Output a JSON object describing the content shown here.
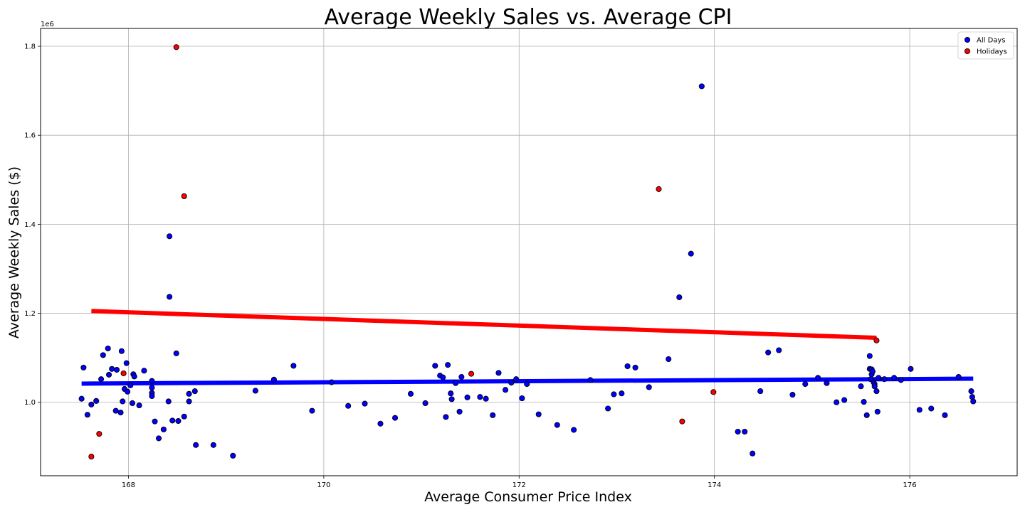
{
  "chart_data": {
    "type": "scatter",
    "title": "Average Weekly Sales vs. Average CPI",
    "xlabel": "Average Consumer Price Index",
    "ylabel": "Average Weekly Sales ($)",
    "y_scale_factor_label": "1e6",
    "xlim": [
      167.1,
      177.1
    ],
    "ylim": [
      0.835,
      1.84
    ],
    "x_ticks": [
      168,
      170,
      172,
      174,
      176
    ],
    "y_ticks": [
      1.0,
      1.2,
      1.4,
      1.6,
      1.8
    ],
    "x_tick_labels": [
      "168",
      "170",
      "172",
      "174",
      "176"
    ],
    "y_tick_labels": [
      "1.0",
      "1.2",
      "1.4",
      "1.6",
      "1.8"
    ],
    "grid": true,
    "legend_position": "top-right",
    "colors": {
      "all_days": "#0000ff",
      "holidays": "#ff0000",
      "grid": "#b0b0b0"
    },
    "series": [
      {
        "name": "All Days",
        "color": "#0000ff",
        "points": [
          [
            167.52,
            1.008
          ],
          [
            167.54,
            1.078
          ],
          [
            167.58,
            0.972
          ],
          [
            167.62,
            0.995
          ],
          [
            167.67,
            1.003
          ],
          [
            167.72,
            1.052
          ],
          [
            167.74,
            1.106
          ],
          [
            167.79,
            1.121
          ],
          [
            167.8,
            1.062
          ],
          [
            167.83,
            1.075
          ],
          [
            167.87,
            0.981
          ],
          [
            167.88,
            1.073
          ],
          [
            167.92,
            0.977
          ],
          [
            167.93,
            1.115
          ],
          [
            167.94,
            1.002
          ],
          [
            167.96,
            1.03
          ],
          [
            167.98,
            1.088
          ],
          [
            167.99,
            1.024
          ],
          [
            168.02,
            1.038
          ],
          [
            168.04,
            0.998
          ],
          [
            168.05,
            1.063
          ],
          [
            168.06,
            1.058
          ],
          [
            168.11,
            0.993
          ],
          [
            168.16,
            1.071
          ],
          [
            168.24,
            1.048
          ],
          [
            168.24,
            1.033
          ],
          [
            168.24,
            1.021
          ],
          [
            168.24,
            1.014
          ],
          [
            168.27,
            0.957
          ],
          [
            168.31,
            0.919
          ],
          [
            168.36,
            0.939
          ],
          [
            168.41,
            1.002
          ],
          [
            168.42,
            1.373
          ],
          [
            168.42,
            1.237
          ],
          [
            168.45,
            0.959
          ],
          [
            168.49,
            1.11
          ],
          [
            168.51,
            0.958
          ],
          [
            168.57,
            0.968
          ],
          [
            168.62,
            1.019
          ],
          [
            168.62,
            1.002
          ],
          [
            168.68,
            1.025
          ],
          [
            168.69,
            0.904
          ],
          [
            168.87,
            0.904
          ],
          [
            169.07,
            0.88
          ],
          [
            169.3,
            1.026
          ],
          [
            169.49,
            1.051
          ],
          [
            169.69,
            1.082
          ],
          [
            169.88,
            0.981
          ],
          [
            170.08,
            1.045
          ],
          [
            170.25,
            0.992
          ],
          [
            170.42,
            0.997
          ],
          [
            170.58,
            0.952
          ],
          [
            170.73,
            0.965
          ],
          [
            170.89,
            1.019
          ],
          [
            171.04,
            0.998
          ],
          [
            171.14,
            1.082
          ],
          [
            171.19,
            1.06
          ],
          [
            171.22,
            1.056
          ],
          [
            171.25,
            0.967
          ],
          [
            171.27,
            1.084
          ],
          [
            171.3,
            1.02
          ],
          [
            171.31,
            1.007
          ],
          [
            171.35,
            1.043
          ],
          [
            171.39,
            0.979
          ],
          [
            171.41,
            1.057
          ],
          [
            171.47,
            1.011
          ],
          [
            171.6,
            1.012
          ],
          [
            171.66,
            1.008
          ],
          [
            171.73,
            0.971
          ],
          [
            171.79,
            1.066
          ],
          [
            171.86,
            1.028
          ],
          [
            171.92,
            1.044
          ],
          [
            171.97,
            1.052
          ],
          [
            172.03,
            1.009
          ],
          [
            172.08,
            1.041
          ],
          [
            172.2,
            0.973
          ],
          [
            172.39,
            0.949
          ],
          [
            172.56,
            0.938
          ],
          [
            172.73,
            1.05
          ],
          [
            172.91,
            0.986
          ],
          [
            172.97,
            1.018
          ],
          [
            173.05,
            1.02
          ],
          [
            173.11,
            1.081
          ],
          [
            173.19,
            1.078
          ],
          [
            173.33,
            1.034
          ],
          [
            173.53,
            1.097
          ],
          [
            173.64,
            1.236
          ],
          [
            173.76,
            1.334
          ],
          [
            173.87,
            1.71
          ],
          [
            174.24,
            0.934
          ],
          [
            174.31,
            0.934
          ],
          [
            174.39,
            0.885
          ],
          [
            174.47,
            1.025
          ],
          [
            174.55,
            1.112
          ],
          [
            174.66,
            1.117
          ],
          [
            174.8,
            1.017
          ],
          [
            174.93,
            1.041
          ],
          [
            175.06,
            1.055
          ],
          [
            175.15,
            1.043
          ],
          [
            175.25,
            1.0
          ],
          [
            175.33,
            1.005
          ],
          [
            175.5,
            1.036
          ],
          [
            175.53,
            1.001
          ],
          [
            175.56,
            0.971
          ],
          [
            175.59,
            1.104
          ],
          [
            175.59,
            1.075
          ],
          [
            175.6,
            1.052
          ],
          [
            175.61,
            1.074
          ],
          [
            175.61,
            1.063
          ],
          [
            175.62,
            1.069
          ],
          [
            175.63,
            1.045
          ],
          [
            175.64,
            1.041
          ],
          [
            175.64,
            1.036
          ],
          [
            175.66,
            1.025
          ],
          [
            175.67,
            0.979
          ],
          [
            175.68,
            1.055
          ],
          [
            175.74,
            1.052
          ],
          [
            175.84,
            1.055
          ],
          [
            175.91,
            1.05
          ],
          [
            176.01,
            1.075
          ],
          [
            176.1,
            0.983
          ],
          [
            176.22,
            0.986
          ],
          [
            176.36,
            0.971
          ],
          [
            176.5,
            1.057
          ],
          [
            176.63,
            1.025
          ],
          [
            176.64,
            1.012
          ],
          [
            176.65,
            1.002
          ]
        ],
        "trend": [
          [
            167.52,
            1.042
          ],
          [
            176.65,
            1.053
          ]
        ]
      },
      {
        "name": "Holidays",
        "color": "#ff0000",
        "points": [
          [
            167.62,
            0.878
          ],
          [
            167.7,
            0.929
          ],
          [
            167.95,
            1.065
          ],
          [
            168.49,
            1.798
          ],
          [
            168.57,
            1.463
          ],
          [
            171.51,
            1.064
          ],
          [
            173.43,
            1.479
          ],
          [
            173.67,
            0.957
          ],
          [
            173.99,
            1.023
          ],
          [
            175.66,
            1.139
          ]
        ],
        "trend": [
          [
            167.62,
            1.205
          ],
          [
            175.66,
            1.145
          ]
        ]
      }
    ]
  }
}
